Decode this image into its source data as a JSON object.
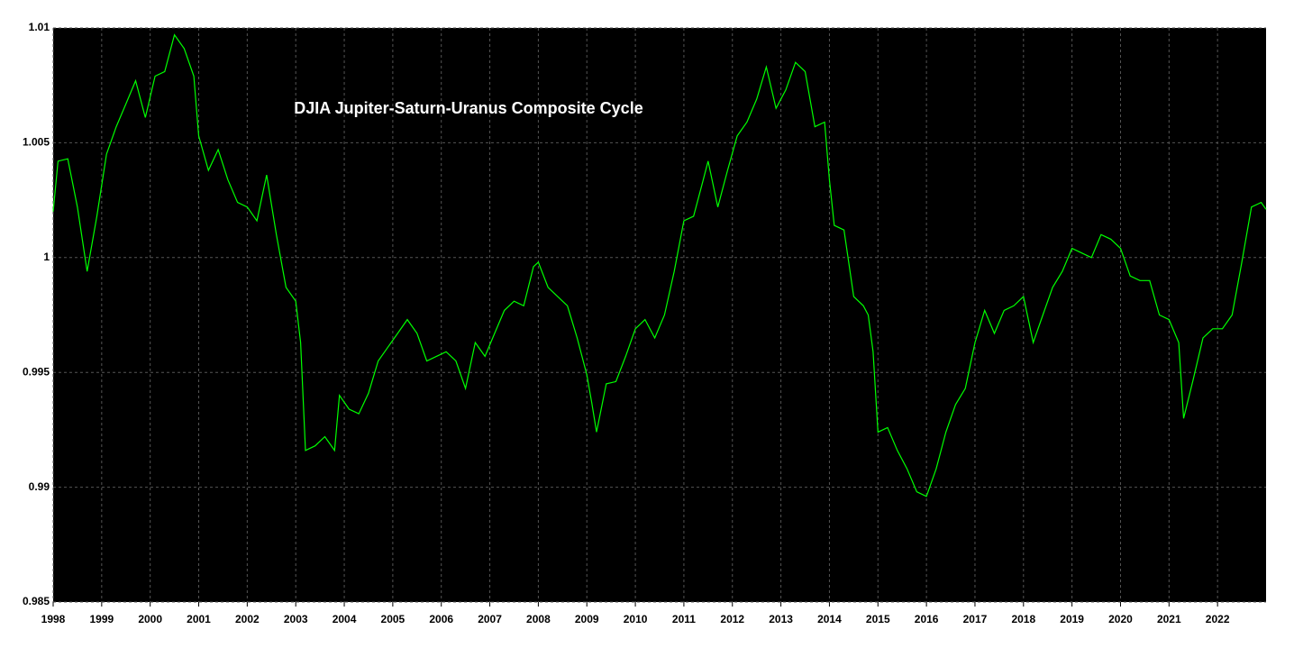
{
  "chart_data": {
    "type": "line",
    "title": "DJIA Jupiter-Saturn-Uranus Composite Cycle",
    "x": [
      1998.0,
      1998.1,
      1998.3,
      1998.5,
      1998.7,
      1998.9,
      1999.1,
      1999.3,
      1999.5,
      1999.7,
      1999.9,
      2000.1,
      2000.3,
      2000.5,
      2000.7,
      2000.9,
      2001.0,
      2001.2,
      2001.4,
      2001.6,
      2001.8,
      2002.0,
      2002.2,
      2002.4,
      2002.6,
      2002.8,
      2003.0,
      2003.1,
      2003.2,
      2003.4,
      2003.6,
      2003.8,
      2003.9,
      2004.1,
      2004.3,
      2004.5,
      2004.7,
      2004.9,
      2005.1,
      2005.3,
      2005.5,
      2005.7,
      2005.9,
      2006.1,
      2006.3,
      2006.5,
      2006.7,
      2006.9,
      2007.1,
      2007.3,
      2007.5,
      2007.7,
      2007.9,
      2008.0,
      2008.2,
      2008.4,
      2008.6,
      2008.8,
      2009.0,
      2009.1,
      2009.2,
      2009.4,
      2009.6,
      2009.8,
      2010.0,
      2010.2,
      2010.4,
      2010.6,
      2010.8,
      2011.0,
      2011.2,
      2011.4,
      2011.5,
      2011.7,
      2011.9,
      2012.1,
      2012.3,
      2012.5,
      2012.7,
      2012.9,
      2013.1,
      2013.3,
      2013.5,
      2013.7,
      2013.9,
      2014.0,
      2014.1,
      2014.3,
      2014.5,
      2014.7,
      2014.8,
      2014.9,
      2015.0,
      2015.2,
      2015.4,
      2015.6,
      2015.8,
      2016.0,
      2016.2,
      2016.4,
      2016.6,
      2016.8,
      2017.0,
      2017.2,
      2017.4,
      2017.6,
      2017.8,
      2018.0,
      2018.2,
      2018.4,
      2018.6,
      2018.8,
      2019.0,
      2019.2,
      2019.4,
      2019.6,
      2019.8,
      2020.0,
      2020.2,
      2020.4,
      2020.6,
      2020.8,
      2021.0,
      2021.2,
      2021.3,
      2021.5,
      2021.7,
      2021.9,
      2022.1,
      2022.3,
      2022.5,
      2022.7,
      2022.9,
      2023.0
    ],
    "series": [
      {
        "name": "DJIA",
        "color": "#00ff00",
        "values": [
          1.002,
          1.0042,
          1.0043,
          1.0022,
          0.9994,
          1.0018,
          1.0045,
          1.0057,
          1.0067,
          1.0077,
          1.0061,
          1.0079,
          1.0081,
          1.0097,
          1.0091,
          1.0079,
          1.0053,
          1.0038,
          1.0047,
          1.0034,
          1.0024,
          1.0022,
          1.0016,
          1.0036,
          1.001,
          0.9987,
          0.9981,
          0.9963,
          0.9916,
          0.9918,
          0.9922,
          0.9916,
          0.994,
          0.9934,
          0.9932,
          0.9941,
          0.9955,
          0.9961,
          0.9967,
          0.9973,
          0.9967,
          0.9955,
          0.9957,
          0.9959,
          0.9955,
          0.9943,
          0.9963,
          0.9957,
          0.9967,
          0.9977,
          0.9981,
          0.9979,
          0.9996,
          0.9998,
          0.9987,
          0.9983,
          0.9979,
          0.9965,
          0.9949,
          0.9937,
          0.9924,
          0.9945,
          0.9946,
          0.9957,
          0.9969,
          0.9973,
          0.9965,
          0.9975,
          0.9994,
          1.0016,
          1.0018,
          1.0034,
          1.0042,
          1.0022,
          1.0038,
          1.0053,
          1.0059,
          1.0069,
          1.0083,
          1.0065,
          1.0073,
          1.0085,
          1.0081,
          1.0057,
          1.0059,
          1.0034,
          1.0014,
          1.0012,
          0.9983,
          0.9979,
          0.9975,
          0.9959,
          0.9924,
          0.9926,
          0.9916,
          0.9908,
          0.9898,
          0.9896,
          0.9908,
          0.9924,
          0.9936,
          0.9943,
          0.9963,
          0.9977,
          0.9967,
          0.9977,
          0.9979,
          0.9983,
          0.9963,
          0.9975,
          0.9987,
          0.9994,
          1.0004,
          1.0002,
          1.0,
          1.001,
          1.0008,
          1.0004,
          0.9992,
          0.999,
          0.999,
          0.9975,
          0.9973,
          0.9963,
          0.993,
          0.9947,
          0.9965,
          0.9969,
          0.9969,
          0.9975,
          0.9998,
          1.0022,
          1.0024,
          1.0021
        ]
      }
    ],
    "xlim": [
      1998,
      2023
    ],
    "xticks": [
      1998,
      1999,
      2000,
      2001,
      2002,
      2003,
      2004,
      2005,
      2006,
      2007,
      2008,
      2009,
      2010,
      2011,
      2012,
      2013,
      2014,
      2015,
      2016,
      2017,
      2018,
      2019,
      2020,
      2021,
      2022
    ],
    "ylim": [
      0.985,
      1.01
    ],
    "yticks": [
      0.985,
      0.99,
      0.995,
      1,
      1.005,
      1.01
    ],
    "grid": true
  }
}
